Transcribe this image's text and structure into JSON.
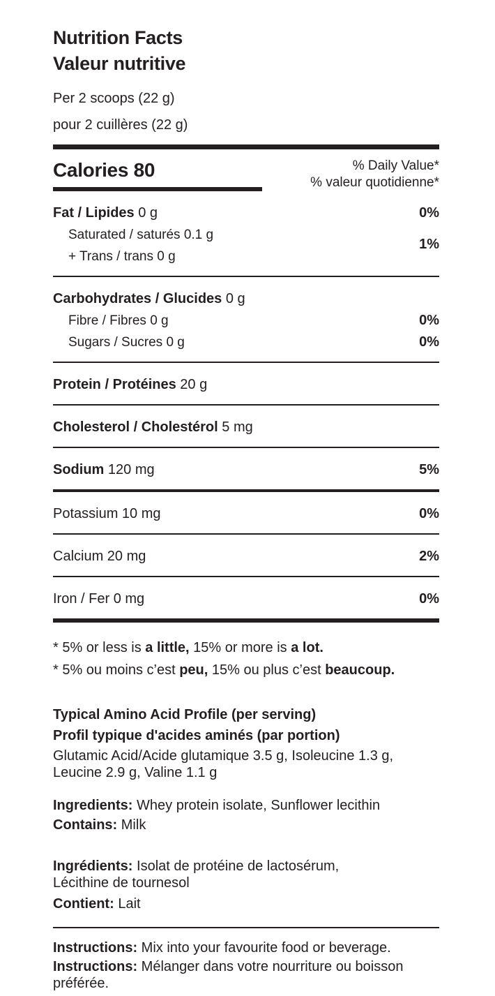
{
  "colors": {
    "text": "#231f20",
    "background": "#ffffff"
  },
  "header": {
    "title_en": "Nutrition Facts",
    "title_fr": "Valeur nutritive",
    "serving_en": "Per 2 scoops (22 g)",
    "serving_fr": "pour 2 cuillères (22 g)"
  },
  "calories": {
    "label": "Calories 80",
    "dv_header_en": "% Daily Value*",
    "dv_header_fr": "% valeur quotidienne*"
  },
  "nutrients": {
    "fat": {
      "bold": "Fat / Lipides",
      "rest": "0 g",
      "dv": "0%"
    },
    "saturated": {
      "name": "Saturated / saturés 0.1 g",
      "dv": "1%"
    },
    "trans": {
      "name": "+ Trans / trans 0 g"
    },
    "carbohydrates": {
      "bold": "Carbohydrates / Glucides",
      "rest": "0 g"
    },
    "fibre": {
      "name": "Fibre / Fibres 0 g",
      "dv": "0%"
    },
    "sugars": {
      "name": "Sugars / Sucres 0 g",
      "dv": "0%"
    },
    "protein": {
      "bold": "Protein / Protéines",
      "rest": "20 g"
    },
    "cholesterol": {
      "bold": "Cholesterol / Cholestérol",
      "rest": "5 mg"
    },
    "sodium": {
      "bold": "Sodium",
      "rest": "120 mg",
      "dv": "5%"
    },
    "potassium": {
      "name": "Potassium 10 mg",
      "dv": "0%"
    },
    "calcium": {
      "name": "Calcium 20 mg",
      "dv": "2%"
    },
    "iron": {
      "name": "Iron / Fer 0 mg",
      "dv": "0%"
    }
  },
  "footnotes": {
    "en": {
      "pre": "* 5% or less is ",
      "bold1": "a little,",
      "mid": " 15% or more is ",
      "bold2": "a lot."
    },
    "fr": {
      "pre": "* 5% ou moins c’est ",
      "bold1": "peu,",
      "mid": " 15% ou plus c’est ",
      "bold2": "beaucoup."
    }
  },
  "amino": {
    "heading_en": "Typical Amino Acid Profile (per serving)",
    "heading_fr": "Profil typique d'acides aminés (par portion)",
    "values": "Glutamic Acid/Acide glutamique 3.5 g, Isoleucine 1.3 g,\nLeucine 2.9 g, Valine 1.1 g"
  },
  "ingredients": {
    "en_label": "Ingredients:",
    "en_text": " Whey protein isolate, Sunflower lecithin",
    "contains_label": "Contains:",
    "contains_text": " Milk",
    "fr_label": "Ingrédients:",
    "fr_text": " Isolat de protéine de lactosérum,\nLécithine de tournesol",
    "contient_label": "Contient:",
    "contient_text": " Lait"
  },
  "instructions": {
    "en_label": "Instructions:",
    "en_text": " Mix into your favourite food or beverage.",
    "fr_label": "Instructions:",
    "fr_text": " Mélanger dans votre nourriture ou boisson\npréférée."
  }
}
